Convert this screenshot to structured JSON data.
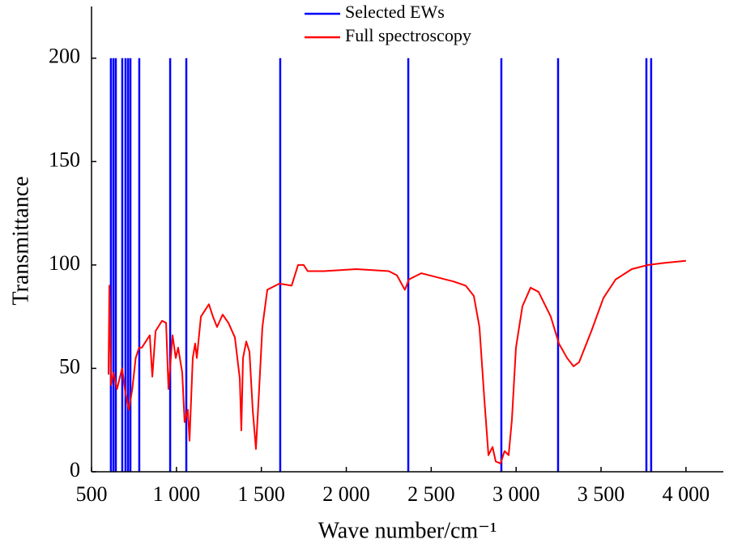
{
  "chart_data": {
    "type": "line",
    "xlabel": "Wave number/cm⁻¹",
    "ylabel": "Transmittance",
    "xlim": [
      500,
      4220
    ],
    "ylim": [
      0,
      225
    ],
    "xticks": [
      500,
      {
        "value": 1000,
        "label": "1 000"
      },
      {
        "value": 1500,
        "label": "1 500"
      },
      {
        "value": 2000,
        "label": "2 000"
      },
      {
        "value": 2500,
        "label": "2 500"
      },
      {
        "value": 3000,
        "label": "3 000"
      },
      {
        "value": 3500,
        "label": "3 500"
      },
      {
        "value": 4000,
        "label": "4 000"
      }
    ],
    "yticks": [
      0,
      50,
      100,
      150,
      200
    ],
    "legend": "top",
    "series": [
      {
        "name": "Selected EWs",
        "type": "vline",
        "color": "#0000ff",
        "x": [
          614,
          629,
          643,
          681,
          700,
          715,
          729,
          781,
          963,
          1058,
          1611,
          2365,
          2913,
          3247,
          3767,
          3795
        ],
        "values": [
          200,
          200,
          200,
          200,
          200,
          200,
          200,
          200,
          200,
          200,
          200,
          200,
          200,
          200,
          200,
          200
        ]
      },
      {
        "name": "Full spectroscopy",
        "type": "line",
        "color": "#ff0000",
        "x": [
          600,
          605,
          615,
          630,
          650,
          680,
          700,
          720,
          740,
          760,
          780,
          796,
          843,
          858,
          877,
          915,
          939,
          953,
          977,
          996,
          1010,
          1034,
          1048,
          1067,
          1077,
          1096,
          1110,
          1120,
          1144,
          1191,
          1215,
          1239,
          1272,
          1306,
          1344,
          1373,
          1382,
          1392,
          1411,
          1430,
          1449,
          1468,
          1487,
          1506,
          1535,
          1606,
          1678,
          1716,
          1749,
          1773,
          1869,
          2059,
          2250,
          2298,
          2345,
          2369,
          2441,
          2632,
          2703,
          2751,
          2784,
          2813,
          2837,
          2861,
          2880,
          2908,
          2932,
          2956,
          2975,
          2999,
          3037,
          3085,
          3132,
          3204,
          3252,
          3300,
          3338,
          3371,
          3443,
          3514,
          3586,
          3681,
          3777,
          3872,
          4000
        ],
        "values": [
          47,
          90,
          42,
          48,
          40,
          50,
          38,
          30,
          40,
          55,
          60,
          60,
          66,
          46,
          68,
          73,
          72,
          40,
          66,
          55,
          60,
          48,
          24,
          30,
          15,
          55,
          62,
          55,
          75,
          81,
          75,
          70,
          76,
          72,
          65,
          45,
          20,
          55,
          63,
          58,
          30,
          11,
          40,
          70,
          88,
          91,
          90,
          100,
          100,
          97,
          97,
          98,
          97,
          95,
          88,
          93,
          96,
          92,
          90,
          85,
          70,
          35,
          8,
          12,
          5,
          4,
          10,
          8,
          25,
          60,
          80,
          89,
          87,
          75,
          62,
          55,
          51,
          53,
          68,
          84,
          93,
          98,
          100,
          101,
          102
        ]
      }
    ]
  }
}
